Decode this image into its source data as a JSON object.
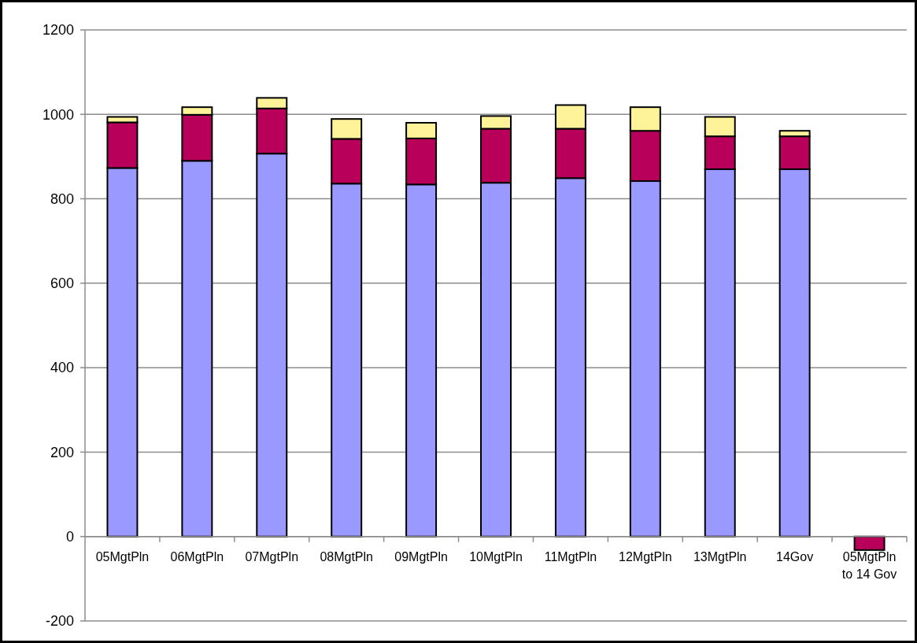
{
  "chart_data": {
    "type": "bar",
    "stacked": true,
    "categories": [
      "05MgtPln",
      "06MgtPln",
      "07MgtPln",
      "08MgtPln",
      "09MgtPln",
      "10MgtPln",
      "11MgtPln",
      "12MgtPln",
      "13MgtPln",
      "14Gov",
      "05MgtPln to 14 Gov"
    ],
    "series": [
      {
        "color": "#9999ff",
        "values": [
          873,
          890,
          907,
          836,
          834,
          838,
          849,
          842,
          870,
          870,
          null
        ]
      },
      {
        "color": "#b8005a",
        "values": [
          108,
          109,
          107,
          106,
          109,
          128,
          117,
          119,
          78,
          78,
          -32
        ]
      },
      {
        "color": "#fff399",
        "values": [
          13,
          18,
          25,
          47,
          37,
          30,
          56,
          56,
          46,
          13,
          null
        ]
      }
    ],
    "ylim": [
      -200,
      1200
    ],
    "yticks": [
      -200,
      0,
      200,
      400,
      600,
      800,
      1000,
      1200
    ],
    "grid": "y"
  }
}
